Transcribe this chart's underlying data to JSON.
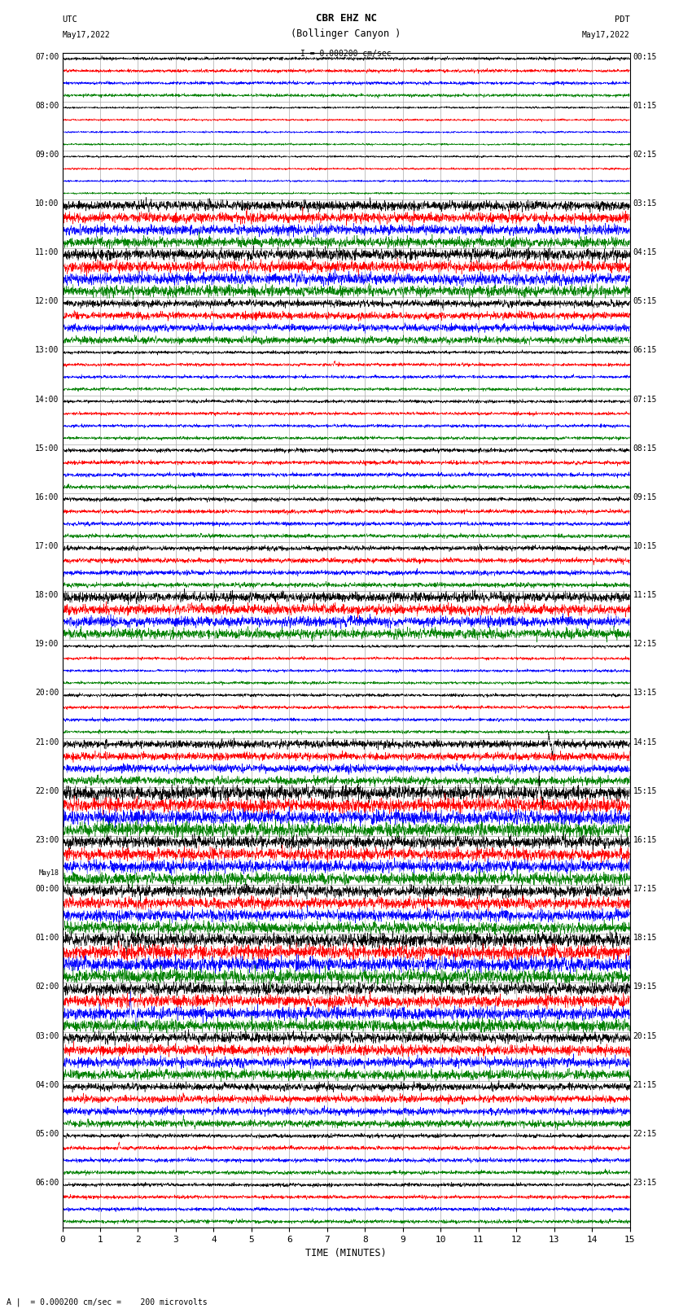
{
  "title_line1": "CBR EHZ NC",
  "title_line2": "(Bollinger Canyon )",
  "scale_label": "I = 0.000200 cm/sec",
  "left_header_line1": "UTC",
  "left_header_line2": "May17,2022",
  "right_header_line1": "PDT",
  "right_header_line2": "May17,2022",
  "xlabel": "TIME (MINUTES)",
  "footer": "A |  = 0.000200 cm/sec =    200 microvolts",
  "utc_labels": [
    "07:00",
    "08:00",
    "09:00",
    "10:00",
    "11:00",
    "12:00",
    "13:00",
    "14:00",
    "15:00",
    "16:00",
    "17:00",
    "18:00",
    "19:00",
    "20:00",
    "21:00",
    "22:00",
    "23:00",
    "May18\n00:00",
    "01:00",
    "02:00",
    "03:00",
    "04:00",
    "05:00",
    "06:00"
  ],
  "pdt_labels": [
    "00:15",
    "01:15",
    "02:15",
    "03:15",
    "04:15",
    "05:15",
    "06:15",
    "07:15",
    "08:15",
    "09:15",
    "10:15",
    "11:15",
    "12:15",
    "13:15",
    "14:15",
    "15:15",
    "16:15",
    "17:15",
    "18:15",
    "19:15",
    "20:15",
    "21:15",
    "22:15",
    "23:15"
  ],
  "n_rows": 24,
  "n_traces_per_row": 4,
  "trace_colors": [
    "black",
    "red",
    "blue",
    "green"
  ],
  "time_min": 0,
  "time_max": 15,
  "xticks": [
    0,
    1,
    2,
    3,
    4,
    5,
    6,
    7,
    8,
    9,
    10,
    11,
    12,
    13,
    14,
    15
  ],
  "bg_color": "#ffffff",
  "grid_color": "#aaaaaa",
  "plot_area_bg": "#ffffff",
  "seed": 42,
  "fig_width": 8.5,
  "fig_height": 16.13,
  "dpi": 100,
  "noise_base": 0.018,
  "activity_levels": [
    0.8,
    0.5,
    0.5,
    0.5,
    1.8,
    1.8,
    0.8,
    0.8,
    1.0,
    1.0,
    1.2,
    2.5,
    0.7,
    0.8,
    2.0,
    3.5,
    3.0,
    2.8,
    3.5,
    3.0,
    2.5,
    1.8,
    1.0,
    0.9
  ]
}
